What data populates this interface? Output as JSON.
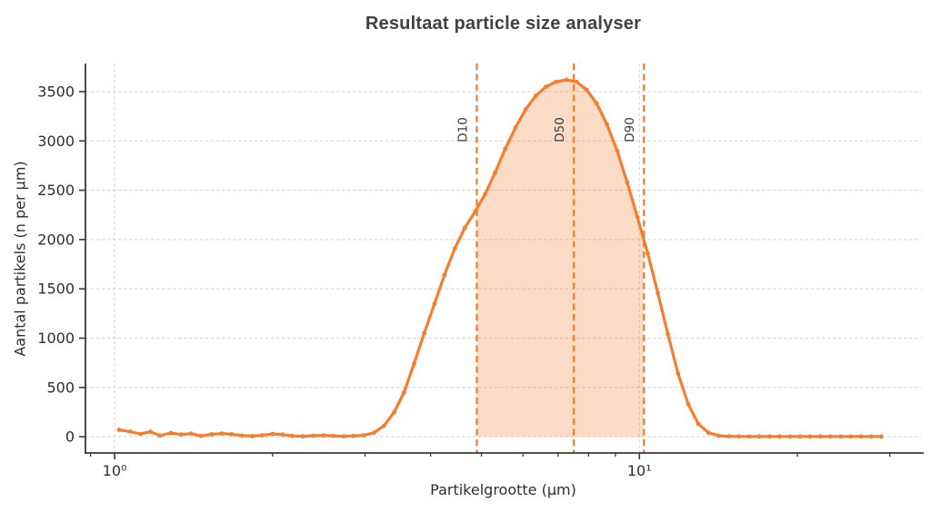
{
  "chart_data": {
    "type": "line",
    "title": "Resultaat particle size analyser",
    "xlabel": "Partikelgrootte (µm)",
    "ylabel": "Aantal partikels (n per µm)",
    "x_scale": "log",
    "xlim": [
      0.88,
      34.4
    ],
    "ylim": [
      -165,
      3785
    ],
    "grid": true,
    "legend": null,
    "y_ticks": [
      0,
      500,
      1000,
      1500,
      2000,
      2500,
      3000,
      3500
    ],
    "x_major_ticks": [
      1,
      10
    ],
    "x_major_tick_labels": [
      "10⁰",
      "10¹"
    ],
    "x_minor_ticks": [
      0.9,
      2,
      3,
      4,
      5,
      6,
      7,
      8,
      9,
      20,
      30
    ],
    "dline_color": "#f57e2e",
    "annotations": [
      {
        "label": "D10",
        "x": 4.9
      },
      {
        "label": "D50",
        "x": 7.5
      },
      {
        "label": "D90",
        "x": 10.2
      }
    ],
    "fill_between": {
      "from": 4.9,
      "to": 10.2,
      "color": "rgba(245,126,46,0.27)"
    },
    "series": [
      {
        "name": "aantal partikels",
        "color": "#f57e2e",
        "marker": "circle",
        "points": [
          [
            1.02,
            70
          ],
          [
            1.07,
            52
          ],
          [
            1.12,
            28
          ],
          [
            1.17,
            50
          ],
          [
            1.22,
            12
          ],
          [
            1.28,
            38
          ],
          [
            1.34,
            22
          ],
          [
            1.4,
            32
          ],
          [
            1.46,
            8
          ],
          [
            1.53,
            25
          ],
          [
            1.6,
            32
          ],
          [
            1.67,
            26
          ],
          [
            1.75,
            12
          ],
          [
            1.83,
            6
          ],
          [
            1.91,
            15
          ],
          [
            2.0,
            28
          ],
          [
            2.09,
            22
          ],
          [
            2.18,
            8
          ],
          [
            2.28,
            4
          ],
          [
            2.39,
            10
          ],
          [
            2.5,
            14
          ],
          [
            2.61,
            8
          ],
          [
            2.73,
            4
          ],
          [
            2.85,
            8
          ],
          [
            2.98,
            14
          ],
          [
            3.12,
            40
          ],
          [
            3.26,
            110
          ],
          [
            3.41,
            250
          ],
          [
            3.56,
            450
          ],
          [
            3.72,
            740
          ],
          [
            3.89,
            1050
          ],
          [
            4.07,
            1350
          ],
          [
            4.25,
            1640
          ],
          [
            4.45,
            1910
          ],
          [
            4.65,
            2120
          ],
          [
            4.86,
            2280
          ],
          [
            5.08,
            2460
          ],
          [
            5.31,
            2680
          ],
          [
            5.55,
            2920
          ],
          [
            5.81,
            3140
          ],
          [
            6.07,
            3320
          ],
          [
            6.35,
            3460
          ],
          [
            6.64,
            3550
          ],
          [
            6.94,
            3600
          ],
          [
            7.26,
            3620
          ],
          [
            7.59,
            3600
          ],
          [
            7.93,
            3520
          ],
          [
            8.29,
            3380
          ],
          [
            8.67,
            3170
          ],
          [
            9.07,
            2900
          ],
          [
            9.48,
            2580
          ],
          [
            9.91,
            2230
          ],
          [
            10.37,
            1860
          ],
          [
            10.84,
            1460
          ],
          [
            11.33,
            1040
          ],
          [
            11.85,
            640
          ],
          [
            12.39,
            330
          ],
          [
            12.95,
            130
          ],
          [
            13.54,
            40
          ],
          [
            14.16,
            10
          ],
          [
            14.81,
            4
          ],
          [
            15.48,
            3
          ],
          [
            16.19,
            3
          ],
          [
            16.92,
            3
          ],
          [
            17.7,
            3
          ],
          [
            18.5,
            3
          ],
          [
            19.35,
            3
          ],
          [
            20.23,
            3
          ],
          [
            21.15,
            3
          ],
          [
            22.12,
            3
          ],
          [
            23.13,
            3
          ],
          [
            24.18,
            3
          ],
          [
            25.28,
            3
          ],
          [
            26.44,
            3
          ],
          [
            27.64,
            3
          ],
          [
            28.9,
            3
          ]
        ]
      }
    ]
  },
  "colors": {
    "accent_orange": "#f57e2e",
    "fill_orange": "rgba(245,126,46,0.27)",
    "grid_gray": "#d3d3d3",
    "axis_dark": "#3a3a3a",
    "text_dark": "#2e2e2e"
  }
}
